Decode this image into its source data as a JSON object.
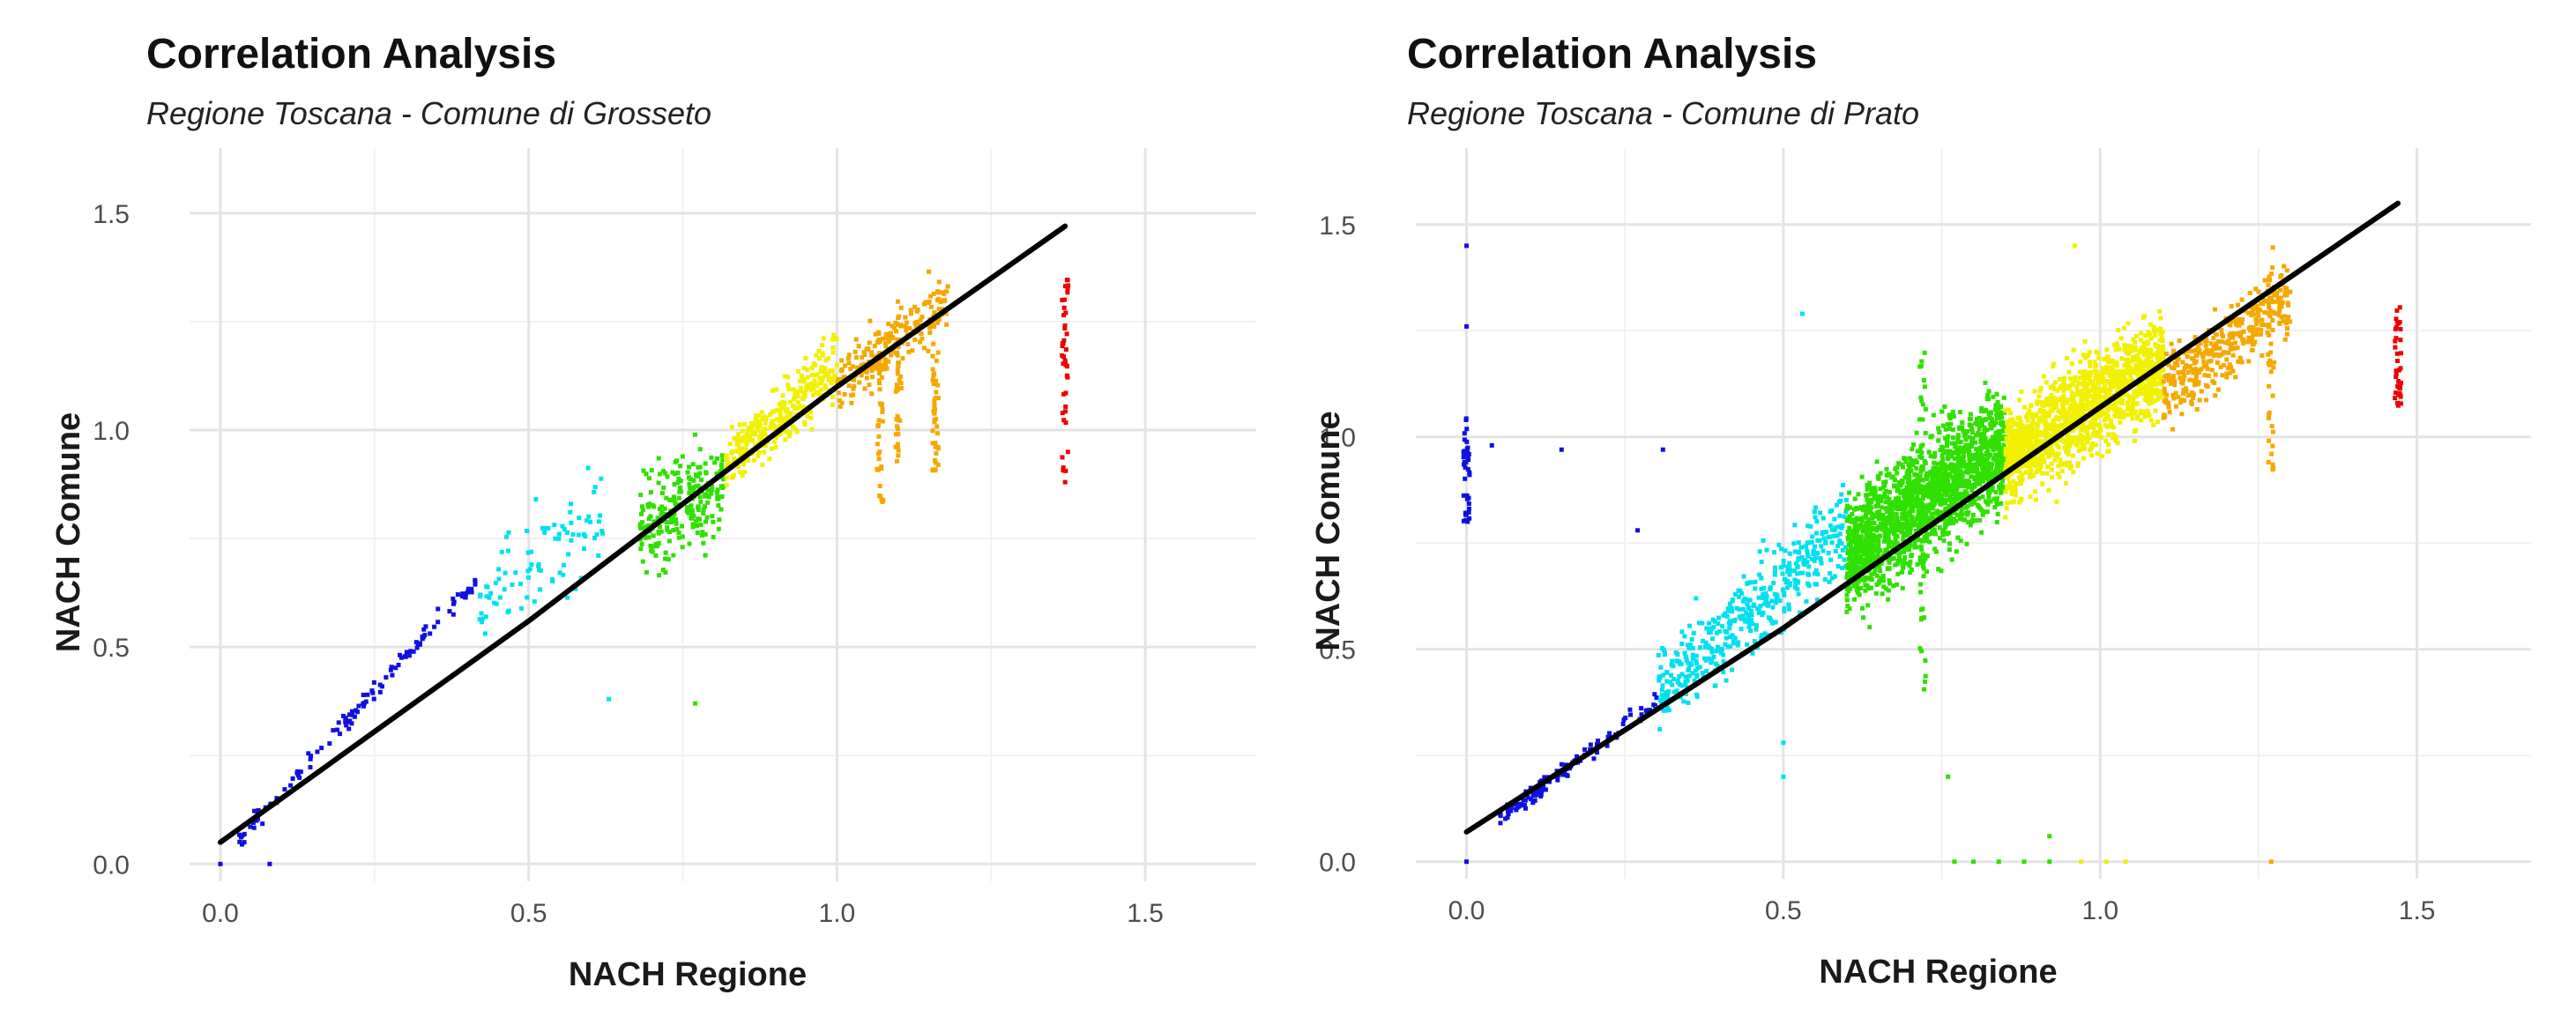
{
  "chart_data": [
    {
      "type": "scatter",
      "title": "Correlation Analysis",
      "subtitle": "Regione Toscana - Comune di Grosseto",
      "xlabel": "NACH Regione",
      "ylabel": "NACH Comune",
      "xlim": [
        -0.05,
        1.68
      ],
      "ylim": [
        -0.04,
        1.65
      ],
      "xticks": [
        0.0,
        0.5,
        1.0,
        1.5
      ],
      "xtick_labels": [
        "0.0",
        "0.5",
        "1.0",
        "1.5"
      ],
      "yticks": [
        0.0,
        0.5,
        1.0,
        1.5
      ],
      "ytick_labels": [
        "0.0",
        "0.5",
        "1.0",
        "1.5"
      ],
      "grid": true,
      "color_scale": "x-value rainbow: blue (0) to cyan, green, yellow, orange, red (max)",
      "colors": {
        "blue": "#1010e0",
        "cyan": "#00e0f0",
        "green": "#30e000",
        "yellow": "#f0f000",
        "orange": "#f5a800",
        "red": "#ee0000",
        "trend": "#000000"
      },
      "trend_line": {
        "points": [
          [
            0.0,
            0.05
          ],
          [
            0.5,
            0.56
          ],
          [
            1.0,
            1.1
          ],
          [
            1.37,
            1.47
          ]
        ]
      },
      "clusters": [
        {
          "name": "blue",
          "color": "blue",
          "x": [
            0.03,
            0.42
          ],
          "y_base": [
            0.06,
            0.66
          ],
          "y_spread": 0.03,
          "count": 120
        },
        {
          "name": "cyan",
          "color": "cyan",
          "x": [
            0.42,
            0.62
          ],
          "y_base": [
            0.6,
            0.82
          ],
          "y_spread": 0.17,
          "count": 90
        },
        {
          "name": "green",
          "color": "green",
          "x": [
            0.68,
            0.82
          ],
          "y_base": [
            0.78,
            0.88
          ],
          "y_spread": 0.17,
          "count": 240
        },
        {
          "name": "yellow",
          "color": "yellow",
          "x": [
            0.82,
            1.0
          ],
          "y_base": [
            0.92,
            1.15
          ],
          "y_spread": 0.1,
          "count": 320
        },
        {
          "name": "orange",
          "color": "orange",
          "x": [
            1.0,
            1.18
          ],
          "y_base": [
            1.1,
            1.3
          ],
          "y_spread": 0.1,
          "count": 200
        }
      ],
      "vertical_streaks": [
        {
          "x": 1.07,
          "y": [
            0.82,
            1.25
          ],
          "color": "orange"
        },
        {
          "x": 1.1,
          "y": [
            0.9,
            1.3
          ],
          "color": "orange"
        },
        {
          "x": 1.16,
          "y": [
            0.9,
            1.2
          ],
          "color": "orange"
        },
        {
          "x": 1.37,
          "y": [
            0.9,
            1.35
          ],
          "color": "red"
        }
      ],
      "outliers": [
        {
          "x": 0.0,
          "y": 0.0,
          "color": "blue"
        },
        {
          "x": 0.08,
          "y": 0.0,
          "color": "blue"
        },
        {
          "x": 1.37,
          "y": 0.88,
          "color": "red"
        },
        {
          "x": 0.77,
          "y": 0.37,
          "color": "green"
        },
        {
          "x": 0.63,
          "y": 0.38,
          "color": "cyan"
        }
      ]
    },
    {
      "type": "scatter",
      "title": "Correlation Analysis",
      "subtitle": "Regione Toscana - Comune di Prato",
      "xlabel": "NACH Regione",
      "ylabel": "NACH Comune",
      "xlim": [
        -0.08,
        1.68
      ],
      "ylim": [
        -0.04,
        1.68
      ],
      "xticks": [
        0.0,
        0.5,
        1.0,
        1.5
      ],
      "xtick_labels": [
        "0.0",
        "0.5",
        "1.0",
        "1.5"
      ],
      "yticks": [
        0.0,
        0.5,
        1.0,
        1.5
      ],
      "ytick_labels": [
        "0.0",
        "0.5",
        "1.0",
        "1.5"
      ],
      "grid": true,
      "color_scale": "x-value rainbow: blue (0) to cyan, green, yellow, orange, red (max)",
      "colors": {
        "blue": "#1010e0",
        "cyan": "#00e0f0",
        "green": "#30e000",
        "yellow": "#f0f000",
        "orange": "#f5a800",
        "red": "#ee0000",
        "trend": "#000000"
      },
      "trend_line": {
        "points": [
          [
            0.0,
            0.07
          ],
          [
            0.5,
            0.55
          ],
          [
            1.0,
            1.07
          ],
          [
            1.47,
            1.55
          ]
        ]
      },
      "clusters": [
        {
          "name": "blue",
          "color": "blue",
          "x": [
            0.05,
            0.3
          ],
          "y_base": [
            0.1,
            0.38
          ],
          "y_spread": 0.03,
          "count": 120
        },
        {
          "name": "cyan",
          "color": "cyan",
          "x": [
            0.3,
            0.6
          ],
          "y_base": [
            0.4,
            0.78
          ],
          "y_spread": 0.14,
          "count": 450
        },
        {
          "name": "green",
          "color": "green",
          "x": [
            0.6,
            0.85
          ],
          "y_base": [
            0.72,
            0.98
          ],
          "y_spread": 0.2,
          "count": 1700
        },
        {
          "name": "yellow",
          "color": "yellow",
          "x": [
            0.85,
            1.1
          ],
          "y_base": [
            0.95,
            1.18
          ],
          "y_spread": 0.16,
          "count": 1400
        },
        {
          "name": "orange",
          "color": "orange",
          "x": [
            1.1,
            1.3
          ],
          "y_base": [
            1.1,
            1.33
          ],
          "y_spread": 0.12,
          "count": 350
        }
      ],
      "vertical_streaks": [
        {
          "x": 0.0,
          "y": [
            0.8,
            1.06
          ],
          "color": "blue"
        },
        {
          "x": 0.72,
          "y": [
            0.38,
            1.2
          ],
          "color": "green"
        },
        {
          "x": 1.27,
          "y": [
            0.92,
            1.45
          ],
          "color": "orange"
        },
        {
          "x": 1.47,
          "y": [
            1.07,
            1.31
          ],
          "color": "red"
        }
      ],
      "outliers": [
        {
          "x": 0.0,
          "y": 1.45,
          "color": "blue"
        },
        {
          "x": 0.0,
          "y": 1.26,
          "color": "blue"
        },
        {
          "x": 0.0,
          "y": 0.0,
          "color": "blue"
        },
        {
          "x": 0.04,
          "y": 0.98,
          "color": "blue"
        },
        {
          "x": 0.15,
          "y": 0.97,
          "color": "blue"
        },
        {
          "x": 0.31,
          "y": 0.97,
          "color": "blue"
        },
        {
          "x": 0.27,
          "y": 0.78,
          "color": "blue"
        },
        {
          "x": 0.5,
          "y": 0.28,
          "color": "cyan"
        },
        {
          "x": 0.5,
          "y": 0.2,
          "color": "cyan"
        },
        {
          "x": 0.53,
          "y": 1.29,
          "color": "cyan"
        },
        {
          "x": 0.77,
          "y": 0.0,
          "color": "green"
        },
        {
          "x": 0.8,
          "y": 0.0,
          "color": "green"
        },
        {
          "x": 0.84,
          "y": 0.0,
          "color": "green"
        },
        {
          "x": 0.88,
          "y": 0.0,
          "color": "green"
        },
        {
          "x": 0.92,
          "y": 0.0,
          "color": "green"
        },
        {
          "x": 0.97,
          "y": 0.0,
          "color": "yellow"
        },
        {
          "x": 1.01,
          "y": 0.0,
          "color": "yellow"
        },
        {
          "x": 1.04,
          "y": 0.0,
          "color": "yellow"
        },
        {
          "x": 1.27,
          "y": 0.0,
          "color": "orange"
        },
        {
          "x": 0.92,
          "y": 0.06,
          "color": "green"
        },
        {
          "x": 0.76,
          "y": 0.2,
          "color": "green"
        },
        {
          "x": 0.96,
          "y": 1.45,
          "color": "yellow"
        }
      ]
    }
  ]
}
